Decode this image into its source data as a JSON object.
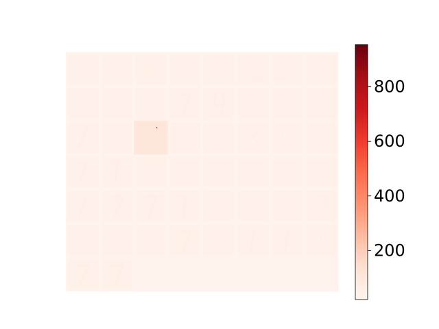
{
  "chart_data": {
    "type": "heatmap",
    "title": "",
    "xlabel": "",
    "ylabel": "",
    "axes_visible": false,
    "grid": false,
    "colormap": "Reds",
    "color_scale": {
      "min": 20,
      "max": 955,
      "low_color": "#fff5f0",
      "high_color": "#67000d"
    },
    "colorbar": {
      "placement": "right",
      "ticks": [
        200,
        400,
        600,
        800
      ],
      "tick_labels": [
        "200",
        "400",
        "600",
        "800"
      ]
    },
    "grid_layout": {
      "rows": 7,
      "cols": 8,
      "tiles_shown": 50
    },
    "tiles": [
      {
        "index": 0,
        "mean_value": 45,
        "has_digit_trace": false
      },
      {
        "index": 1,
        "mean_value": 45,
        "has_digit_trace": false
      },
      {
        "index": 2,
        "mean_value": 42,
        "has_digit_trace": true,
        "trace": "1"
      },
      {
        "index": 3,
        "mean_value": 45,
        "has_digit_trace": false
      },
      {
        "index": 4,
        "mean_value": 44,
        "has_digit_trace": true,
        "trace": "/"
      },
      {
        "index": 5,
        "mean_value": 45,
        "has_digit_trace": true,
        "trace": "0"
      },
      {
        "index": 6,
        "mean_value": 45,
        "has_digit_trace": true,
        "trace": "/"
      },
      {
        "index": 7,
        "mean_value": 45,
        "has_digit_trace": false
      },
      {
        "index": 8,
        "mean_value": 48,
        "has_digit_trace": false
      },
      {
        "index": 9,
        "mean_value": 44,
        "has_digit_trace": false
      },
      {
        "index": 10,
        "mean_value": 43,
        "has_digit_trace": false
      },
      {
        "index": 11,
        "mean_value": 46,
        "has_digit_trace": true,
        "trace": "7"
      },
      {
        "index": 12,
        "mean_value": 46,
        "has_digit_trace": true,
        "trace": "4"
      },
      {
        "index": 13,
        "mean_value": 45,
        "has_digit_trace": true,
        "trace": "/"
      },
      {
        "index": 14,
        "mean_value": 45,
        "has_digit_trace": false
      },
      {
        "index": 15,
        "mean_value": 44,
        "has_digit_trace": false
      },
      {
        "index": 16,
        "mean_value": 46,
        "has_digit_trace": true,
        "trace": "/"
      },
      {
        "index": 17,
        "mean_value": 45,
        "has_digit_trace": true,
        "trace": "/"
      },
      {
        "index": 18,
        "mean_value": 110,
        "has_digit_trace": false,
        "hot_pixel_value": 955
      },
      {
        "index": 19,
        "mean_value": 43,
        "has_digit_trace": true,
        "trace": "7"
      },
      {
        "index": 20,
        "mean_value": 44,
        "has_digit_trace": true,
        "trace": "/"
      },
      {
        "index": 21,
        "mean_value": 45,
        "has_digit_trace": true,
        "trace": "3"
      },
      {
        "index": 22,
        "mean_value": 45,
        "has_digit_trace": true,
        "trace": "4"
      },
      {
        "index": 23,
        "mean_value": 45,
        "has_digit_trace": true,
        "trace": "7"
      },
      {
        "index": 24,
        "mean_value": 46,
        "has_digit_trace": true,
        "trace": "/"
      },
      {
        "index": 25,
        "mean_value": 46,
        "has_digit_trace": true,
        "trace": "1"
      },
      {
        "index": 26,
        "mean_value": 44,
        "has_digit_trace": true,
        "trace": "7"
      },
      {
        "index": 27,
        "mean_value": 45,
        "has_digit_trace": true,
        "trace": "/"
      },
      {
        "index": 28,
        "mean_value": 44,
        "has_digit_trace": false
      },
      {
        "index": 29,
        "mean_value": 45,
        "has_digit_trace": false
      },
      {
        "index": 30,
        "mean_value": 45,
        "has_digit_trace": false
      },
      {
        "index": 31,
        "mean_value": 44,
        "has_digit_trace": false
      },
      {
        "index": 32,
        "mean_value": 46,
        "has_digit_trace": true,
        "trace": "/"
      },
      {
        "index": 33,
        "mean_value": 46,
        "has_digit_trace": true,
        "trace": "7"
      },
      {
        "index": 34,
        "mean_value": 46,
        "has_digit_trace": true,
        "trace": "7"
      },
      {
        "index": 35,
        "mean_value": 46,
        "has_digit_trace": true,
        "trace": "1"
      },
      {
        "index": 36,
        "mean_value": 44,
        "has_digit_trace": false
      },
      {
        "index": 37,
        "mean_value": 45,
        "has_digit_trace": true,
        "trace": "/"
      },
      {
        "index": 38,
        "mean_value": 44,
        "has_digit_trace": false
      },
      {
        "index": 39,
        "mean_value": 45,
        "has_digit_trace": true,
        "trace": "4"
      },
      {
        "index": 40,
        "mean_value": 48,
        "has_digit_trace": false
      },
      {
        "index": 41,
        "mean_value": 48,
        "has_digit_trace": false
      },
      {
        "index": 42,
        "mean_value": 47,
        "has_digit_trace": false
      },
      {
        "index": 43,
        "mean_value": 47,
        "has_digit_trace": true,
        "trace": "7"
      },
      {
        "index": 44,
        "mean_value": 48,
        "has_digit_trace": false
      },
      {
        "index": 45,
        "mean_value": 46,
        "has_digit_trace": true,
        "trace": "1"
      },
      {
        "index": 46,
        "mean_value": 46,
        "has_digit_trace": true,
        "trace": "1"
      },
      {
        "index": 47,
        "mean_value": 45,
        "has_digit_trace": true,
        "trace": "1"
      },
      {
        "index": 48,
        "mean_value": 48,
        "has_digit_trace": true,
        "trace": "7"
      },
      {
        "index": 49,
        "mean_value": 48,
        "has_digit_trace": true,
        "trace": "7"
      }
    ],
    "empty_fill_value": 40
  }
}
